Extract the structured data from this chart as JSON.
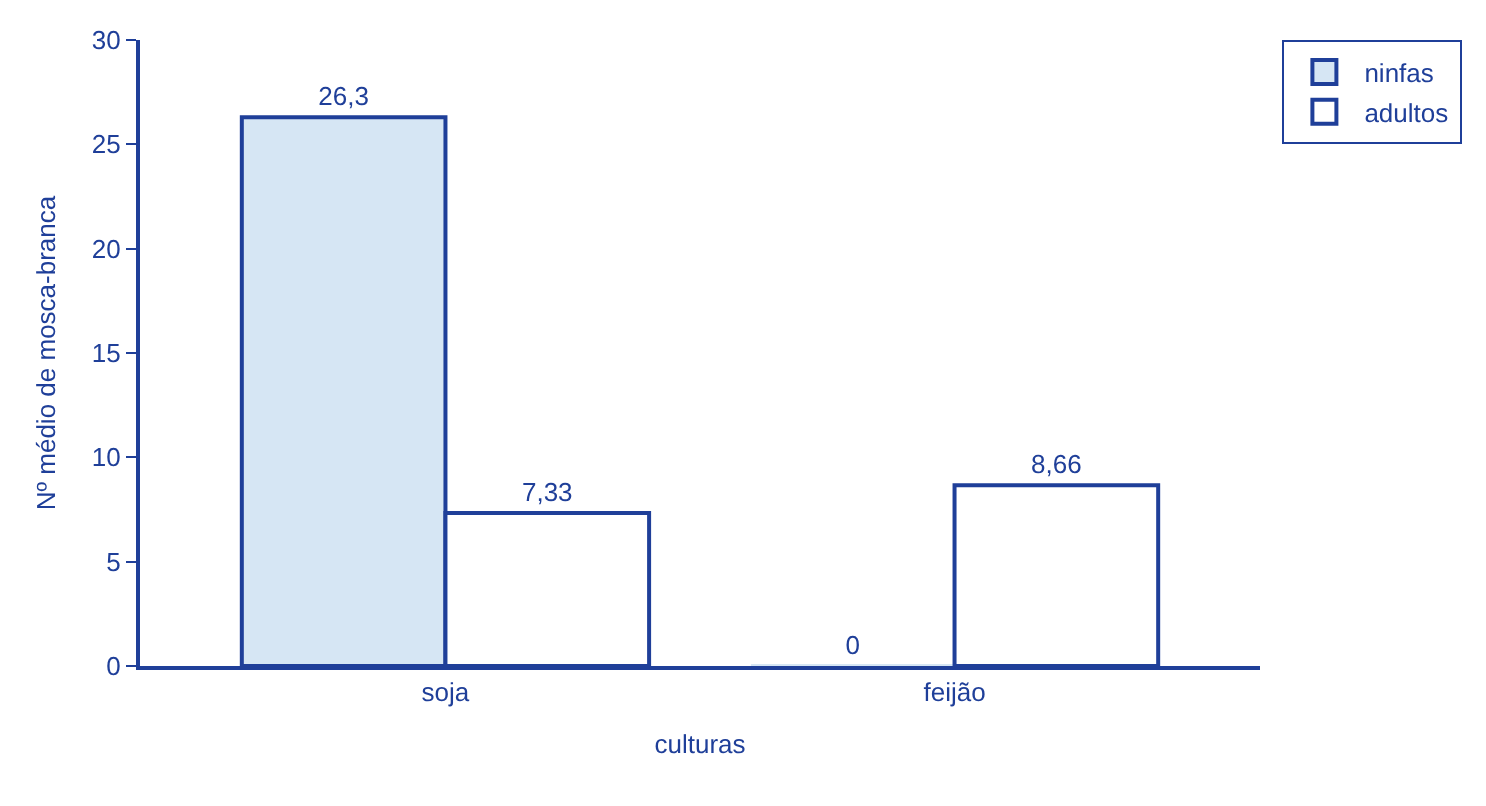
{
  "chart_data": {
    "type": "bar",
    "xlabel": "culturas",
    "ylabel": "Nº médio de mosca-branca",
    "categories": [
      "soja",
      "feijão"
    ],
    "series": [
      {
        "name": "ninfas",
        "color": "#d6e6f4",
        "values": [
          26.3,
          0
        ],
        "value_labels": [
          "26,3",
          "0"
        ]
      },
      {
        "name": "adultos",
        "color": "#ffffff",
        "values": [
          7.33,
          8.66
        ],
        "value_labels": [
          "7,33",
          "8,66"
        ]
      }
    ],
    "ylim": [
      0,
      30
    ],
    "yticks": [
      0,
      5,
      10,
      15,
      20,
      25,
      30
    ],
    "legend": "top right"
  }
}
